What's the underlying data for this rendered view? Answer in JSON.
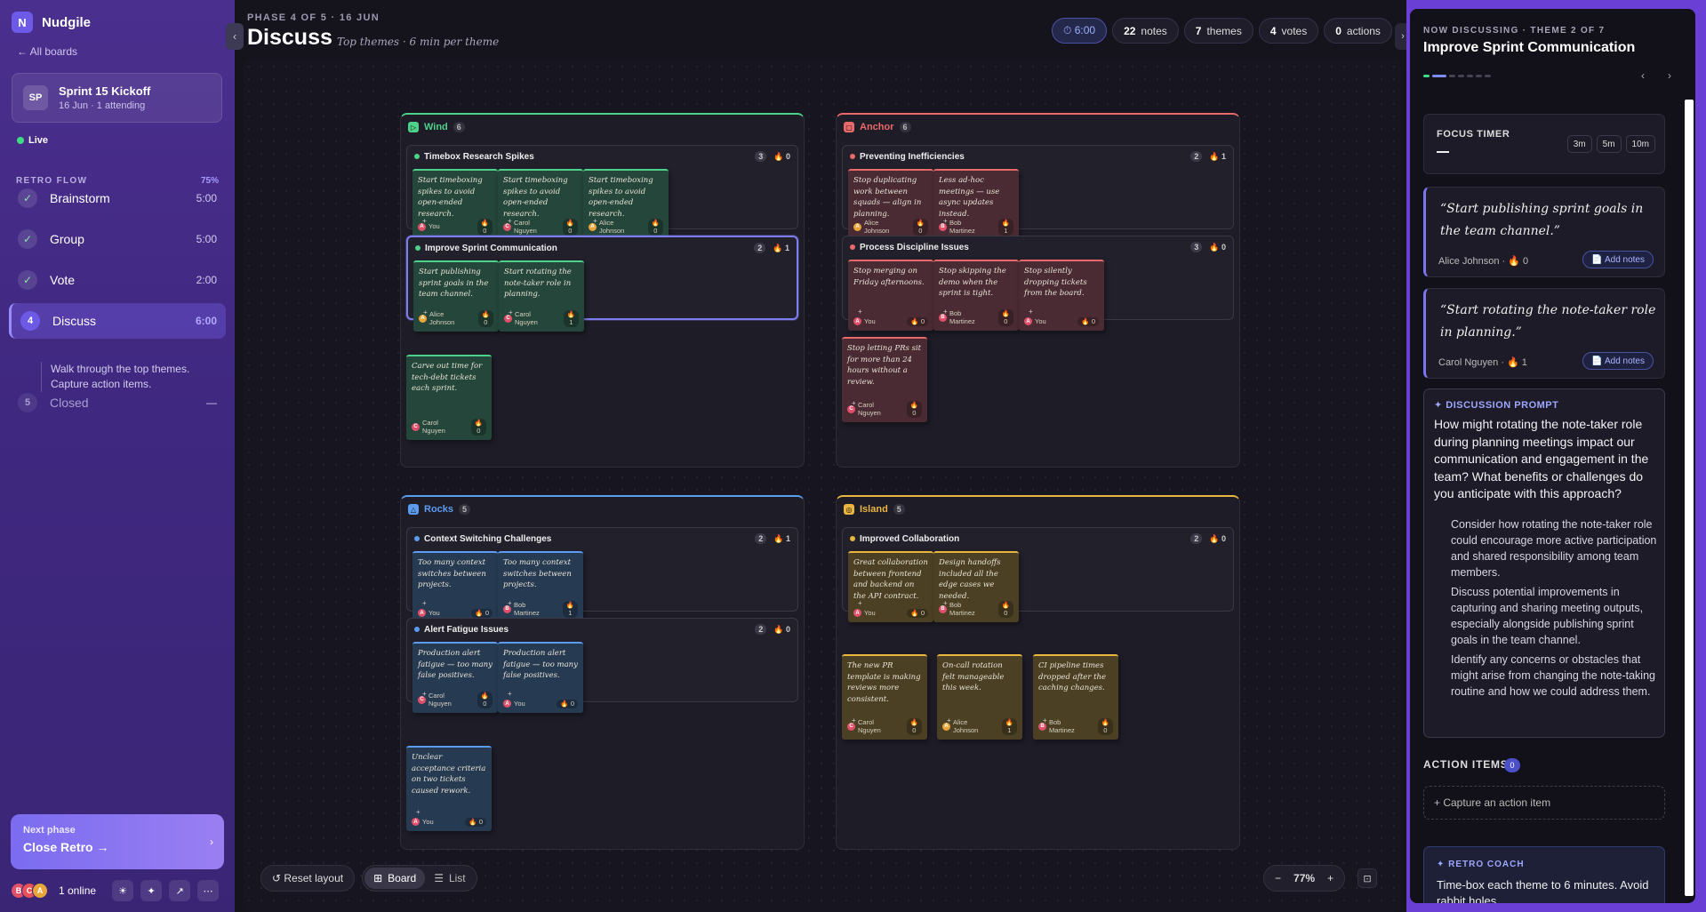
{
  "app": {
    "logo": "N",
    "name": "Nudgile",
    "all_boards": "← All boards"
  },
  "board": {
    "initials": "SP",
    "title": "Sprint 15 Kickoff",
    "subtitle": "16 Jun · 1 attending",
    "live": "Live"
  },
  "flow": {
    "heading": "RETRO FLOW",
    "percent": "75%",
    "phases": [
      {
        "icon": "✓",
        "name": "Brainstorm",
        "time": "5:00"
      },
      {
        "icon": "✓",
        "name": "Group",
        "time": "5:00"
      },
      {
        "icon": "✓",
        "name": "Vote",
        "time": "2:00"
      },
      {
        "icon": "4",
        "name": "Discuss",
        "time": "6:00"
      },
      {
        "icon": "5",
        "name": "Closed",
        "time": "—"
      }
    ],
    "active_desc": "Walk through the top themes. Capture action items."
  },
  "next": {
    "label": "Next phase",
    "title": "Close Retro →",
    "chevron": "›"
  },
  "presence": {
    "avatars": [
      {
        "letter": "B",
        "color": "#e0506a"
      },
      {
        "letter": "C",
        "color": "#e8505a"
      },
      {
        "letter": "A",
        "color": "#e8a63a"
      }
    ],
    "online": "1 online"
  },
  "toolbar_icons": [
    "☀",
    "✦",
    "↗",
    "⋯"
  ],
  "header": {
    "phase_label": "PHASE 4 OF 5 · 16 JUN",
    "title": "Discuss",
    "subtitle": "Top themes · 6 min per theme",
    "timer": "⏱ 6:00",
    "stats": [
      {
        "num": "22",
        "label": "notes"
      },
      {
        "num": "7",
        "label": "themes"
      },
      {
        "num": "4",
        "label": "votes"
      },
      {
        "num": "0",
        "label": "actions"
      }
    ]
  },
  "sections": [
    {
      "name": "Wind",
      "count": "6",
      "color": "#4dd28a",
      "icon": "▷",
      "themes": [
        {
          "title": "Timebox Research Spikes",
          "count": "3",
          "votes": "🔥 0",
          "selected": false,
          "notes": [
            {
              "text": "Start timeboxing spikes to avoid open-ended research.",
              "author": "You",
              "initial": "A",
              "avcolor": "#e0506a",
              "votes": "🔥\n0",
              "plus": true
            },
            {
              "text": "Start timeboxing spikes to avoid open-ended research.",
              "author": "Carol Nguyen",
              "initial": "C",
              "avcolor": "#e0506a",
              "votes": "🔥\n0",
              "plus": true
            },
            {
              "text": "Start timeboxing spikes to avoid open-ended research.",
              "author": "Alice Johnson",
              "initial": "A",
              "avcolor": "#e8a63a",
              "votes": "🔥\n0",
              "plus": true
            }
          ]
        },
        {
          "title": "Improve Sprint Communication",
          "count": "2",
          "votes": "🔥 1",
          "selected": true,
          "notes": [
            {
              "text": "Start publishing sprint goals in the team channel.",
              "author": "Alice Johnson",
              "initial": "A",
              "avcolor": "#e8a63a",
              "votes": "🔥\n0",
              "plus": true
            },
            {
              "text": "Start rotating the note-taker role in planning.",
              "author": "Carol Nguyen",
              "initial": "C",
              "avcolor": "#e0506a",
              "votes": "🔥\n1",
              "plus": true
            }
          ]
        }
      ],
      "loose": [
        {
          "text": "Carve out time for tech-debt tickets each sprint.",
          "author": "Carol Nguyen",
          "initial": "C",
          "avcolor": "#e0506a",
          "votes": "🔥\n0",
          "plus": false
        }
      ]
    },
    {
      "name": "Anchor",
      "count": "6",
      "color": "#ea6a6a",
      "icon": "▢",
      "themes": [
        {
          "title": "Preventing Inefficiencies",
          "count": "2",
          "votes": "🔥 1",
          "selected": false,
          "notes": [
            {
              "text": "Stop duplicating work between squads — align in planning.",
              "author": "Alice Johnson",
              "initial": "A",
              "avcolor": "#e8a63a",
              "votes": "🔥\n0",
              "plus": false
            },
            {
              "text": "Less ad-hoc meetings — use async updates instead.",
              "author": "Bob Martinez",
              "initial": "B",
              "avcolor": "#e0506a",
              "votes": "🔥\n1",
              "plus": true
            }
          ]
        },
        {
          "title": "Process Discipline Issues",
          "count": "3",
          "votes": "🔥 0",
          "selected": false,
          "notes": [
            {
              "text": "Stop merging on Friday afternoons.",
              "author": "You",
              "initial": "A",
              "avcolor": "#e0506a",
              "votes": "🔥 0",
              "plus": true
            },
            {
              "text": "Stop skipping the demo when the sprint is tight.",
              "author": "Bob Martinez",
              "initial": "B",
              "avcolor": "#e0506a",
              "votes": "🔥\n0",
              "plus": true
            },
            {
              "text": "Stop silently dropping tickets from the board.",
              "author": "You",
              "initial": "A",
              "avcolor": "#e0506a",
              "votes": "🔥 0",
              "plus": true
            }
          ]
        }
      ],
      "loose": [
        {
          "text": "Stop letting PRs sit for more than 24 hours without a review.",
          "author": "Carol Nguyen",
          "initial": "C",
          "avcolor": "#e0506a",
          "votes": "🔥\n0",
          "plus": true
        }
      ]
    },
    {
      "name": "Rocks",
      "count": "5",
      "color": "#5b9cf0",
      "icon": "△",
      "themes": [
        {
          "title": "Context Switching Challenges",
          "count": "2",
          "votes": "🔥 1",
          "selected": false,
          "notes": [
            {
              "text": "Too many context switches between projects.",
              "author": "You",
              "initial": "A",
              "avcolor": "#e0506a",
              "votes": "🔥 0",
              "plus": true
            },
            {
              "text": "Too many context switches between projects.",
              "author": "Bob Martinez",
              "initial": "B",
              "avcolor": "#e0506a",
              "votes": "🔥\n1",
              "plus": true
            }
          ]
        },
        {
          "title": "Alert Fatigue Issues",
          "count": "2",
          "votes": "🔥 0",
          "selected": false,
          "notes": [
            {
              "text": "Production alert fatigue — too many false positives.",
              "author": "Carol Nguyen",
              "initial": "C",
              "avcolor": "#e0506a",
              "votes": "🔥\n0",
              "plus": true
            },
            {
              "text": "Production alert fatigue — too many false positives.",
              "author": "You",
              "initial": "A",
              "avcolor": "#e0506a",
              "votes": "🔥 0",
              "plus": true
            }
          ]
        }
      ],
      "loose": [
        {
          "text": "Unclear acceptance criteria on two tickets caused rework.",
          "author": "You",
          "initial": "A",
          "avcolor": "#e0506a",
          "votes": "🔥 0",
          "plus": true
        }
      ]
    },
    {
      "name": "Island",
      "count": "5",
      "color": "#e9b640",
      "icon": "◎",
      "themes": [
        {
          "title": "Improved Collaboration",
          "count": "2",
          "votes": "🔥 0",
          "selected": false,
          "notes": [
            {
              "text": "Great collaboration between frontend and backend on the API contract.",
              "author": "You",
              "initial": "A",
              "avcolor": "#e0506a",
              "votes": "🔥 0",
              "plus": true
            },
            {
              "text": "Design handoffs included all the edge cases we needed.",
              "author": "Bob Martinez",
              "initial": "B",
              "avcolor": "#e0506a",
              "votes": "🔥\n0",
              "plus": true
            }
          ]
        }
      ],
      "loose": [
        {
          "text": "The new PR template is making reviews more consistent.",
          "author": "Carol Nguyen",
          "initial": "C",
          "avcolor": "#e0506a",
          "votes": "🔥\n0",
          "plus": true
        },
        {
          "text": "On-call rotation felt manageable this week.",
          "author": "Alice Johnson",
          "initial": "A",
          "avcolor": "#e8a63a",
          "votes": "🔥\n1",
          "plus": true
        },
        {
          "text": "CI pipeline times dropped after the caching changes.",
          "author": "Bob Martinez",
          "initial": "B",
          "avcolor": "#e0506a",
          "votes": "🔥\n0",
          "plus": true
        }
      ]
    }
  ],
  "canvas_tools": {
    "reset": "↺ Reset layout",
    "board": "Board",
    "list": "List",
    "zoom": "77%",
    "zoom_out": "−",
    "zoom_in": "+"
  },
  "right": {
    "label": "NOW DISCUSSING · THEME 2 OF 7",
    "title": "Improve Sprint Communication",
    "progress": {
      "current": 2,
      "total": 7
    },
    "focus": {
      "title": "FOCUS TIMER",
      "presets": [
        "3m",
        "5m",
        "10m"
      ]
    },
    "quotes": [
      {
        "text": "“Start publishing sprint goals in the team channel.”",
        "meta": "Alice Johnson · 🔥 0",
        "button": "📄 Add notes"
      },
      {
        "text": "“Start rotating the note-taker role in planning.”",
        "meta": "Carol Nguyen · 🔥 1",
        "button": "📄 Add notes"
      }
    ],
    "prompt": {
      "title": "✦ DISCUSSION PROMPT",
      "question": "How might rotating the note-taker role during planning meetings impact our communication and engagement in the team? What benefits or challenges do you anticipate with this approach?",
      "bullets": [
        "Consider how rotating the note-taker role could encourage more active participation and shared responsibility among team members.",
        "Discuss potential improvements in capturing and sharing meeting outputs, especially alongside publishing sprint goals in the team channel.",
        "Identify any concerns or obstacles that might arise from changing the note-taking routine and how we could address them."
      ]
    },
    "actions": {
      "title": "ACTION ITEMS",
      "count": "0",
      "capture": "+ Capture an action item"
    },
    "coach": {
      "title": "✦ RETRO COACH",
      "text": "Time-box each theme to 6 minutes. Avoid rabbit holes."
    }
  }
}
